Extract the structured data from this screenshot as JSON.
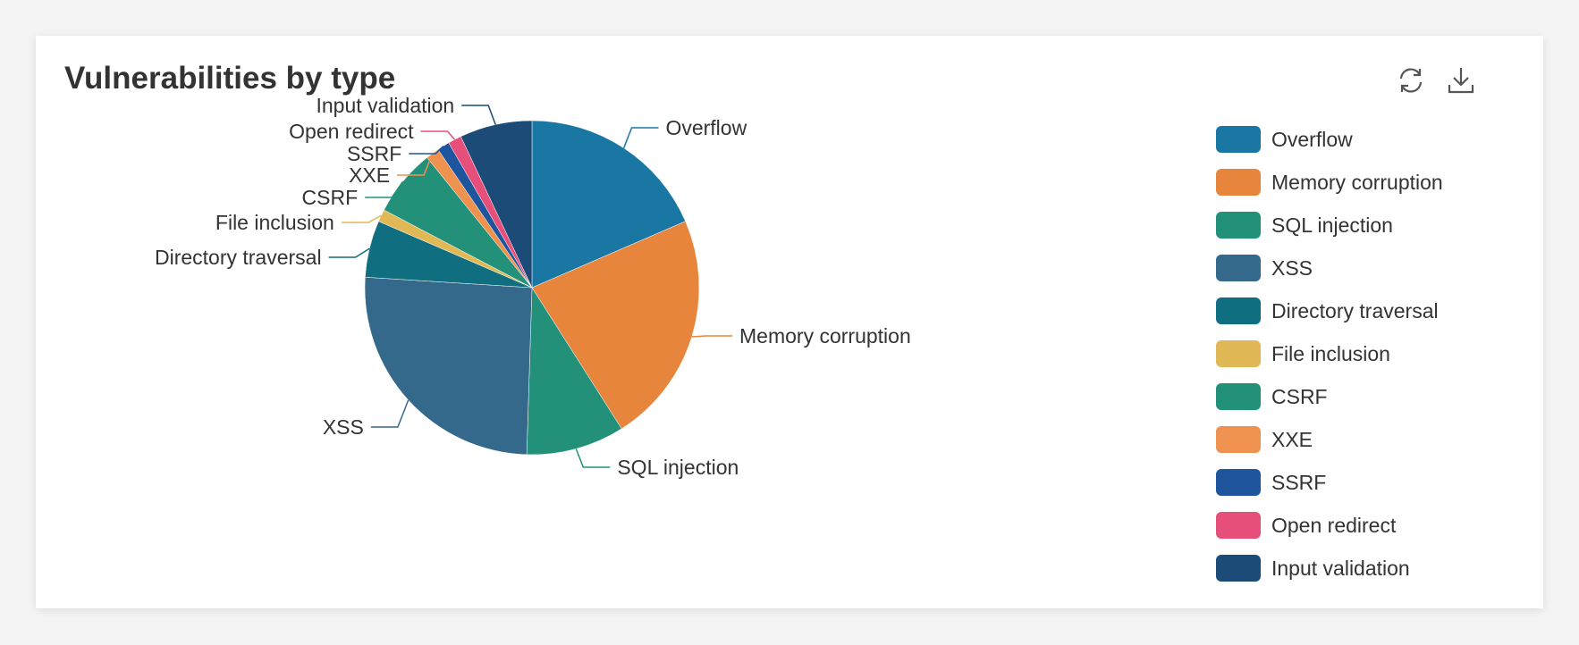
{
  "card": {
    "title": "Vulnerabilities by type",
    "toolbar": {
      "refresh_icon": "refresh-icon",
      "download_icon": "download-icon"
    }
  },
  "chart_data": {
    "type": "pie",
    "title": "Vulnerabilities by type",
    "legend_position": "right",
    "slices": [
      {
        "name": "Overflow",
        "value": 18.5,
        "color": "#1a77a4"
      },
      {
        "name": "Memory corruption",
        "value": 22.5,
        "color": "#e8853d"
      },
      {
        "name": "SQL injection",
        "value": 9.5,
        "color": "#23907a"
      },
      {
        "name": "XSS",
        "value": 25.5,
        "color": "#35698c"
      },
      {
        "name": "Directory traversal",
        "value": 5.5,
        "color": "#0f6e7f"
      },
      {
        "name": "File inclusion",
        "value": 1.2,
        "color": "#e0b956"
      },
      {
        "name": "CSRF",
        "value": 6.5,
        "color": "#23907a"
      },
      {
        "name": "XXE",
        "value": 1.3,
        "color": "#ef9250"
      },
      {
        "name": "SSRF",
        "value": 1.2,
        "color": "#1e559d"
      },
      {
        "name": "Open redirect",
        "value": 1.3,
        "color": "#e74f7b"
      },
      {
        "name": "Input validation",
        "value": 7.0,
        "color": "#1c4b78"
      }
    ]
  }
}
